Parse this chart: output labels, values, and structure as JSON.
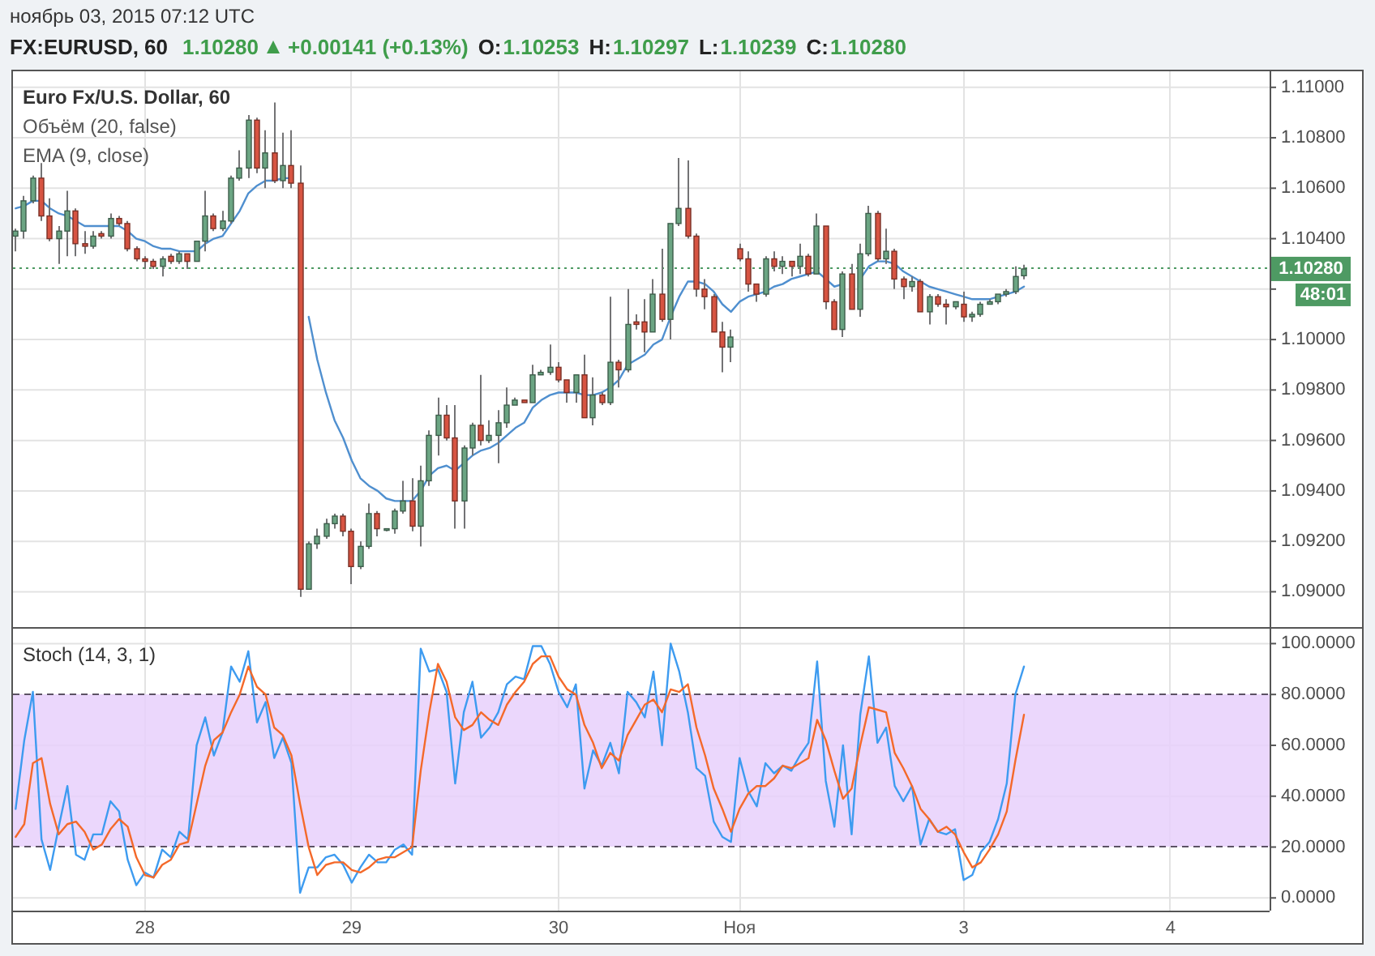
{
  "chart_data": [
    {
      "type": "other",
      "title": "ноябрь 03, 2015 07:12 UTC",
      "subtitle": "FX:EURUSD, 60",
      "annotations": [
        "1.10280",
        "+0.00141 (+0.13%)",
        "O:",
        "1.10253",
        "H:",
        "1.10297",
        "L:",
        "1.10239",
        "C:",
        "1.10280"
      ]
    },
    {
      "type": "candlestick",
      "title": "Euro Fx/U.S. Dollar, 60",
      "annotations": [
        "Объём (20, false)",
        "EMA (9, close)",
        "48:01"
      ],
      "categories": [
        null,
        null,
        null,
        null,
        null,
        null,
        null,
        null,
        null,
        null,
        null,
        null,
        null,
        null,
        null,
        null,
        null,
        null,
        null,
        null,
        null,
        null,
        null,
        null,
        null,
        null,
        null,
        null,
        null,
        null,
        null,
        null,
        null,
        null,
        null,
        null,
        null,
        null,
        null,
        null,
        null,
        null,
        null,
        null,
        null,
        null,
        null,
        null,
        null,
        null,
        null,
        null,
        null,
        null,
        null,
        null,
        null,
        null,
        null,
        null,
        null,
        null,
        null,
        null,
        null,
        null,
        null,
        null,
        null,
        null,
        null,
        null,
        null,
        null,
        null,
        null,
        null,
        null,
        null,
        null,
        null,
        null,
        null,
        null,
        null,
        null,
        null,
        null,
        null,
        null,
        null,
        null,
        null,
        null,
        null,
        null,
        null,
        null,
        null,
        null,
        null,
        null,
        null,
        null,
        null,
        null,
        null,
        null,
        null,
        null,
        null,
        null,
        null,
        null,
        null,
        null,
        null,
        null,
        null,
        null,
        null,
        null,
        null,
        null,
        null,
        null,
        null,
        null,
        null,
        null,
        null,
        null,
        null,
        null,
        null,
        null,
        null,
        null,
        null,
        null,
        null,
        null,
        null,
        null,
        null,
        null
      ],
      "ohlc": [
        [
          1.1041,
          1.1044,
          1.1035,
          1.1043
        ],
        [
          1.1043,
          1.1057,
          1.104,
          1.1055
        ],
        [
          1.1055,
          1.1065,
          1.1054,
          1.1064
        ],
        [
          1.1064,
          1.107,
          1.1047,
          1.1049
        ],
        [
          1.1049,
          1.1056,
          1.1039,
          1.104
        ],
        [
          1.104,
          1.1045,
          1.103,
          1.1043
        ],
        [
          1.1043,
          1.1059,
          1.1033,
          1.1051
        ],
        [
          1.1051,
          1.1052,
          1.1033,
          1.1038
        ],
        [
          1.1038,
          1.1043,
          1.1034,
          1.1037
        ],
        [
          1.1037,
          1.1043,
          1.1036,
          1.1041
        ],
        [
          1.1042,
          1.1043,
          1.104,
          1.1041
        ],
        [
          1.1041,
          1.105,
          1.104,
          1.1048
        ],
        [
          1.1048,
          1.1049,
          1.1045,
          1.1046
        ],
        [
          1.1046,
          1.1047,
          1.1035,
          1.1036
        ],
        [
          1.1036,
          1.1037,
          1.1031,
          1.1032
        ],
        [
          1.1032,
          1.1033,
          1.1028,
          1.1031
        ],
        [
          1.1031,
          1.1032,
          1.1028,
          1.1029
        ],
        [
          1.1029,
          1.1033,
          1.1025,
          1.1032
        ],
        [
          1.1033,
          1.1034,
          1.103,
          1.1031
        ],
        [
          1.1031,
          1.1035,
          1.103,
          1.1034
        ],
        [
          1.1034,
          1.1034,
          1.1028,
          1.1031
        ],
        [
          1.1031,
          1.1039,
          1.1031,
          1.1039
        ],
        [
          1.1039,
          1.1059,
          1.1035,
          1.1049
        ],
        [
          1.1049,
          1.105,
          1.1043,
          1.1044
        ],
        [
          1.1044,
          1.1051,
          1.1043,
          1.1047
        ],
        [
          1.1047,
          1.1065,
          1.1046,
          1.1064
        ],
        [
          1.1064,
          1.1075,
          1.1063,
          1.1068
        ],
        [
          1.1068,
          1.1089,
          1.1064,
          1.1087
        ],
        [
          1.1087,
          1.1088,
          1.1066,
          1.1068
        ],
        [
          1.1068,
          1.1083,
          1.106,
          1.1074
        ],
        [
          1.1074,
          1.1094,
          1.1062,
          1.1063
        ],
        [
          1.1063,
          1.1082,
          1.106,
          1.1069
        ],
        [
          1.1069,
          1.1083,
          1.106,
          1.1062
        ],
        [
          1.1062,
          1.1069,
          1.0898,
          1.0901
        ],
        [
          1.0901,
          1.092,
          1.0901,
          1.0919
        ],
        [
          1.0919,
          1.0925,
          1.0917,
          1.0922
        ],
        [
          1.0922,
          1.0929,
          1.0921,
          1.0927
        ],
        [
          1.0927,
          1.0931,
          1.0925,
          1.093
        ],
        [
          1.093,
          1.0931,
          1.0922,
          1.0924
        ],
        [
          1.0924,
          1.0925,
          1.0903,
          1.091
        ],
        [
          1.091,
          1.092,
          1.0909,
          1.0918
        ],
        [
          1.0918,
          1.0935,
          1.0917,
          1.0931
        ],
        [
          1.0931,
          1.0932,
          1.0922,
          1.0925
        ],
        [
          1.0925,
          1.0925,
          1.0924,
          1.0925
        ],
        [
          1.0925,
          1.0933,
          1.0923,
          1.0932
        ],
        [
          1.0932,
          1.0944,
          1.0931,
          1.0936
        ],
        [
          1.0936,
          1.0945,
          1.0924,
          1.0926
        ],
        [
          1.0926,
          1.095,
          1.0918,
          1.0944
        ],
        [
          1.0944,
          1.0964,
          1.0942,
          1.0962
        ],
        [
          1.0962,
          1.0977,
          1.0954,
          1.097
        ],
        [
          1.097,
          1.0974,
          1.096,
          1.0961
        ],
        [
          1.0961,
          1.0974,
          1.0925,
          1.0936
        ],
        [
          1.0936,
          1.0958,
          1.0925,
          1.0957
        ],
        [
          1.0957,
          1.0967,
          1.0954,
          1.0966
        ],
        [
          1.0966,
          1.0986,
          1.0958,
          1.096
        ],
        [
          1.096,
          1.0968,
          1.0959,
          1.0962
        ],
        [
          1.0962,
          1.0972,
          1.0951,
          1.0967
        ],
        [
          1.0967,
          1.0981,
          1.0965,
          1.0974
        ],
        [
          1.0974,
          1.0977,
          1.0974,
          1.0976
        ],
        [
          1.0976,
          1.0976,
          1.0975,
          1.0975
        ],
        [
          1.0975,
          1.099,
          1.0975,
          1.0986
        ],
        [
          1.0986,
          1.0988,
          1.0986,
          1.0987
        ],
        [
          1.0987,
          1.0998,
          1.0986,
          1.0989
        ],
        [
          1.0989,
          1.0991,
          1.0983,
          1.0984
        ],
        [
          1.0984,
          1.0984,
          1.0975,
          1.0979
        ],
        [
          1.0979,
          1.0986,
          1.0975,
          1.0986
        ],
        [
          1.0986,
          1.0994,
          1.0969,
          1.0969
        ],
        [
          1.0969,
          1.0985,
          1.0966,
          1.0978
        ],
        [
          1.0978,
          1.0979,
          1.0974,
          1.0975
        ],
        [
          1.0975,
          1.1017,
          1.0974,
          1.0991
        ],
        [
          1.0991,
          1.0992,
          1.0981,
          1.0988
        ],
        [
          1.0988,
          1.102,
          1.0987,
          1.1006
        ],
        [
          1.1007,
          1.101,
          1.1004,
          1.1006
        ],
        [
          1.1007,
          1.1016,
          1.0995,
          1.1003
        ],
        [
          1.1003,
          1.1024,
          1.1003,
          1.1018
        ],
        [
          1.1018,
          1.1036,
          1.1007,
          1.1008
        ],
        [
          1.1008,
          1.1046,
          1.1,
          1.1046
        ],
        [
          1.1046,
          1.1072,
          1.1045,
          1.1052
        ],
        [
          1.1052,
          1.1071,
          1.104,
          1.1041
        ],
        [
          1.1041,
          1.1042,
          1.1017,
          1.102
        ],
        [
          1.102,
          1.1024,
          1.1012,
          1.1017
        ],
        [
          1.1017,
          1.1018,
          1.1003,
          1.1003
        ],
        [
          1.1003,
          1.1007,
          1.0987,
          1.0997
        ],
        [
          1.0997,
          1.1004,
          1.0991,
          1.1001
        ],
        [
          1.1036,
          1.1038,
          1.1031,
          1.1032
        ],
        [
          1.1032,
          1.1035,
          1.1019,
          1.1022
        ],
        [
          1.1022,
          1.1022,
          1.1015,
          1.1018
        ],
        [
          1.1018,
          1.1033,
          1.1017,
          1.1032
        ],
        [
          1.1032,
          1.1035,
          1.1027,
          1.1029
        ],
        [
          1.1029,
          1.1033,
          1.1026,
          1.1031
        ],
        [
          1.1031,
          1.1031,
          1.1025,
          1.1029
        ],
        [
          1.1029,
          1.1038,
          1.1026,
          1.1033
        ],
        [
          1.1033,
          1.1034,
          1.1025,
          1.1026
        ],
        [
          1.1026,
          1.105,
          1.1026,
          1.1045
        ],
        [
          1.1045,
          1.1045,
          1.1012,
          1.1015
        ],
        [
          1.1015,
          1.1016,
          1.1004,
          1.1004
        ],
        [
          1.1004,
          1.1027,
          1.1001,
          1.1026
        ],
        [
          1.1026,
          1.103,
          1.1012,
          1.1012
        ],
        [
          1.1012,
          1.1038,
          1.1009,
          1.1034
        ],
        [
          1.1034,
          1.1053,
          1.1033,
          1.105
        ],
        [
          1.105,
          1.1051,
          1.1031,
          1.1032
        ],
        [
          1.1032,
          1.1044,
          1.103,
          1.1035
        ],
        [
          1.1035,
          1.1036,
          1.102,
          1.1024
        ],
        [
          1.1024,
          1.1025,
          1.1016,
          1.1021
        ],
        [
          1.1021,
          1.1025,
          1.1019,
          1.1023
        ],
        [
          1.1023,
          1.1024,
          1.1011,
          1.1011
        ],
        [
          1.1011,
          1.1018,
          1.1006,
          1.1017
        ],
        [
          1.1017,
          1.1018,
          1.1013,
          1.1014
        ],
        [
          1.1014,
          1.1016,
          1.1006,
          1.1013
        ],
        [
          1.1013,
          1.1015,
          1.1012,
          1.1015
        ],
        [
          1.1014,
          1.1019,
          1.1007,
          1.1009
        ],
        [
          1.1009,
          1.1011,
          1.1007,
          1.101
        ],
        [
          1.101,
          1.1015,
          1.1009,
          1.1014
        ],
        [
          1.1014,
          1.1016,
          1.1014,
          1.1015
        ],
        [
          1.1015,
          1.1018,
          1.1014,
          1.1018
        ],
        [
          1.1018,
          1.102,
          1.1017,
          1.1019
        ],
        [
          1.1019,
          1.1029,
          1.1018,
          1.1025
        ],
        [
          1.10253,
          1.10297,
          1.10239,
          1.1028
        ],
        null,
        null,
        null,
        null,
        null,
        null,
        null,
        null,
        null,
        null,
        null,
        null,
        null,
        null,
        null,
        null,
        null,
        null,
        null,
        null,
        null,
        null,
        null,
        null,
        null,
        null,
        null,
        null
      ],
      "colors": [
        "#6ba583",
        "#6ba583",
        "#6ba583",
        "#d75442",
        "#d75442",
        "#6ba583",
        "#6ba583",
        "#d75442",
        "#d75442",
        "#6ba583",
        "#d75442",
        "#6ba583",
        "#d75442",
        "#d75442",
        "#d75442",
        "#d75442",
        "#d75442",
        "#6ba583",
        "#d75442",
        "#6ba583",
        "#d75442",
        "#6ba583",
        "#6ba583",
        "#d75442",
        "#6ba583",
        "#6ba583",
        "#6ba583",
        "#6ba583",
        "#d75442",
        "#6ba583",
        "#d75442",
        "#6ba583",
        "#d75442",
        "#d75442",
        "#6ba583",
        "#6ba583",
        "#6ba583",
        "#6ba583",
        "#d75442",
        "#d75442",
        "#6ba583",
        "#6ba583",
        "#d75442",
        "#6ba583",
        "#6ba583",
        "#6ba583",
        "#d75442",
        "#6ba583",
        "#6ba583",
        "#6ba583",
        "#d75442",
        "#d75442",
        "#6ba583",
        "#6ba583",
        "#d75442",
        "#6ba583",
        "#6ba583",
        "#6ba583",
        "#6ba583",
        "#d75442",
        "#6ba583",
        "#6ba583",
        "#6ba583",
        "#d75442",
        "#d75442",
        "#6ba583",
        "#d75442",
        "#6ba583",
        "#d75442",
        "#6ba583",
        "#d75442",
        "#6ba583",
        "#d75442",
        "#d75442",
        "#6ba583",
        "#d75442",
        "#6ba583",
        "#6ba583",
        "#d75442",
        "#d75442",
        "#d75442",
        "#d75442",
        "#d75442",
        "#6ba583",
        "#d75442",
        "#d75442",
        "#d75442",
        "#6ba583",
        "#d75442",
        "#6ba583",
        "#d75442",
        "#6ba583",
        "#d75442",
        "#6ba583",
        "#d75442",
        "#d75442",
        "#6ba583",
        "#d75442",
        "#6ba583",
        "#6ba583",
        "#d75442",
        "#6ba583",
        "#d75442",
        "#d75442",
        "#6ba583",
        "#d75442",
        "#6ba583",
        "#d75442",
        "#d75442",
        "#6ba583",
        "#d75442",
        "#6ba583",
        "#6ba583",
        "#6ba583",
        "#6ba583",
        "#6ba583",
        "#6ba583",
        "#6ba583",
        null,
        null,
        null,
        null,
        null,
        null,
        null,
        null,
        null,
        null,
        null,
        null,
        null,
        null,
        null,
        null,
        null,
        null,
        null,
        null,
        null,
        null,
        null,
        null,
        null,
        null,
        null,
        null
      ],
      "series": [
        {
          "type": "line",
          "color": "#4f8fcf",
          "values": [
            1.1052,
            1.1053,
            1.1055,
            1.1055,
            1.1052,
            1.105,
            1.1049,
            1.1047,
            1.1045,
            1.1045,
            1.1045,
            1.1045,
            1.1045,
            1.1043,
            1.104,
            1.1039,
            1.1037,
            1.1036,
            1.1036,
            1.1035,
            1.1035,
            1.1035,
            1.1038,
            1.104,
            1.1041,
            1.1046,
            1.1051,
            1.1058,
            1.1061,
            1.1063,
            1.1063,
            1.1064,
            1.1064,
            null,
            1.1009,
            1.0992,
            1.0979,
            1.0968,
            1.0961,
            1.0952,
            1.0945,
            1.0942,
            1.094,
            1.0937,
            1.0936,
            1.0936,
            1.0936,
            1.094,
            1.0946,
            1.0949,
            1.095,
            1.0948,
            1.0951,
            1.0954,
            1.0956,
            1.0957,
            1.0959,
            1.0962,
            1.0965,
            1.0967,
            1.0973,
            1.0976,
            1.0978,
            1.0979,
            1.0979,
            1.0979,
            1.0978,
            1.0978,
            1.0979,
            1.0981,
            1.0984,
            1.099,
            1.0992,
            1.0994,
            1.0998,
            1.1,
            1.1009,
            1.1017,
            1.1023,
            1.1023,
            1.1022,
            1.1019,
            1.1014,
            1.1011,
            1.1015,
            1.1017,
            1.1018,
            1.1019,
            1.1021,
            1.1022,
            1.1024,
            1.1025,
            1.1026,
            1.1027,
            1.1024,
            1.1021,
            1.1022,
            null,
            1.1024,
            1.1029,
            1.1031,
            1.1031,
            1.103,
            1.1027,
            1.1025,
            1.1023,
            1.1021,
            1.102,
            1.1019,
            1.1018,
            1.1017,
            1.1016,
            1.1016,
            1.1016,
            1.1017,
            1.1018,
            1.1019,
            1.1021,
            null,
            null,
            null,
            null,
            null,
            null,
            null,
            null,
            null,
            null,
            null,
            null,
            null,
            null,
            null,
            null,
            null,
            null,
            null,
            null,
            null,
            null,
            null,
            null,
            null,
            null,
            null,
            null
          ]
        }
      ],
      "ylim": [
        1.0886,
        1.1107
      ],
      "yticks": [
        {
          "value": 1.09,
          "label": "1.09000"
        },
        {
          "value": 1.092,
          "label": "1.09200"
        },
        {
          "value": 1.094,
          "label": "1.09400"
        },
        {
          "value": 1.096,
          "label": "1.09600"
        },
        {
          "value": 1.098,
          "label": "1.09800"
        },
        {
          "value": 1.1,
          "label": "1.10000"
        },
        {
          "value": 1.102,
          "label": null
        },
        {
          "value": 1.104,
          "label": "1.10400"
        },
        {
          "value": 1.106,
          "label": "1.10600"
        },
        {
          "value": 1.108,
          "label": "1.10800"
        },
        {
          "value": 1.11,
          "label": "1.11000"
        }
      ],
      "ref_lines": [
        {
          "axis": "y",
          "value": 1.1028,
          "label": "1.10280",
          "color": "#4e9a63",
          "line_style": "dotted"
        }
      ],
      "grid": true,
      "tick_labels": "y"
    },
    {
      "type": "line",
      "title": "Stoch (14, 3, 1)",
      "categories": [
        null,
        null,
        null,
        null,
        null,
        null,
        null,
        null,
        null,
        null,
        null,
        null,
        null,
        null,
        null,
        "28",
        null,
        null,
        null,
        null,
        null,
        null,
        null,
        null,
        null,
        null,
        null,
        null,
        null,
        null,
        null,
        null,
        null,
        null,
        null,
        null,
        null,
        null,
        null,
        "29",
        null,
        null,
        null,
        null,
        null,
        null,
        null,
        null,
        null,
        null,
        null,
        null,
        null,
        null,
        null,
        null,
        null,
        null,
        null,
        null,
        null,
        null,
        null,
        "30",
        null,
        null,
        null,
        null,
        null,
        null,
        null,
        null,
        null,
        null,
        null,
        null,
        null,
        null,
        null,
        null,
        null,
        null,
        null,
        null,
        "Ноя",
        null,
        null,
        null,
        null,
        null,
        null,
        null,
        null,
        null,
        null,
        null,
        null,
        null,
        null,
        null,
        null,
        null,
        null,
        null,
        null,
        null,
        null,
        null,
        null,
        null,
        "3",
        null,
        null,
        null,
        null,
        null,
        null,
        null,
        null,
        null,
        null,
        null,
        null,
        null,
        null,
        null,
        null,
        null,
        null,
        null,
        null,
        null,
        null,
        null,
        "4",
        null,
        null,
        null,
        null,
        null,
        null,
        null,
        null,
        null,
        null,
        null
      ],
      "series": [
        {
          "color": "#3d9bf0",
          "values": [
            35,
            62,
            81,
            23,
            11,
            28,
            44,
            17,
            15,
            25,
            25,
            38,
            34,
            15,
            5,
            10,
            8,
            19,
            16,
            26,
            23,
            60,
            71,
            56,
            65,
            91,
            85,
            97,
            69,
            77,
            55,
            63,
            53,
            2,
            12,
            12,
            16,
            17,
            13,
            6,
            12,
            17,
            14,
            14,
            19,
            21,
            17,
            98,
            89,
            90,
            81,
            45,
            73,
            85,
            63,
            67,
            73,
            84,
            87,
            86,
            99,
            99,
            92,
            81,
            75,
            84,
            43,
            58,
            52,
            61,
            49,
            81,
            77,
            71,
            89,
            60,
            100,
            89,
            73,
            51,
            48,
            30,
            24,
            22,
            55,
            42,
            36,
            53,
            49,
            52,
            50,
            56,
            61,
            93,
            46,
            28,
            60,
            25,
            72,
            95,
            61,
            67,
            44,
            38,
            44,
            21,
            31,
            26,
            25,
            27,
            7,
            9,
            18,
            22,
            31,
            45,
            80,
            91,
            null,
            null,
            null,
            null,
            null,
            null,
            null,
            null,
            null,
            null,
            null,
            null,
            null,
            null,
            null,
            null,
            null,
            null,
            null,
            null,
            null,
            null,
            null,
            null,
            null,
            null,
            null,
            null
          ]
        },
        {
          "color": "#f4692a",
          "values": [
            24,
            29,
            53,
            55,
            37,
            25,
            29,
            30,
            26,
            19,
            21,
            27,
            31,
            28,
            16,
            9,
            8,
            13,
            15,
            21,
            22,
            37,
            52,
            62,
            65,
            73,
            80,
            91,
            83,
            80,
            67,
            64,
            56,
            37,
            20,
            9,
            13,
            14,
            14,
            11,
            10,
            12,
            15,
            16,
            16,
            18,
            20,
            50,
            73,
            92,
            85,
            71,
            66,
            68,
            73,
            70,
            68,
            76,
            81,
            85,
            92,
            95,
            95,
            87,
            82,
            80,
            68,
            61,
            51,
            57,
            54,
            64,
            70,
            76,
            78,
            73,
            82,
            81,
            84,
            67,
            56,
            43,
            35,
            26,
            35,
            41,
            44,
            44,
            47,
            52,
            51,
            53,
            55,
            70,
            62,
            50,
            39,
            43,
            60,
            75,
            74,
            73,
            57,
            51,
            44,
            35,
            31,
            26,
            28,
            25,
            18,
            12,
            14,
            19,
            25,
            34,
            54,
            72,
            null,
            null,
            null,
            null,
            null,
            null,
            null,
            null,
            null,
            null,
            null,
            null,
            null,
            null,
            null,
            null,
            null,
            null,
            null,
            null,
            null,
            null,
            null,
            null,
            null,
            null,
            null,
            null
          ]
        }
      ],
      "ylim": [
        -5,
        106.5
      ],
      "yticks": [
        {
          "value": 0,
          "label": "0.0000"
        },
        {
          "value": 20,
          "label": "20.0000"
        },
        {
          "value": 40,
          "label": "40.0000"
        },
        {
          "value": 60,
          "label": "60.0000"
        },
        {
          "value": 80,
          "label": "80.0000"
        },
        {
          "value": 100,
          "label": "100.0000"
        }
      ],
      "bands": [
        {
          "axis": "y",
          "from": 20,
          "to": 80,
          "color": "#e8d0fc"
        }
      ],
      "grid": true
    }
  ]
}
